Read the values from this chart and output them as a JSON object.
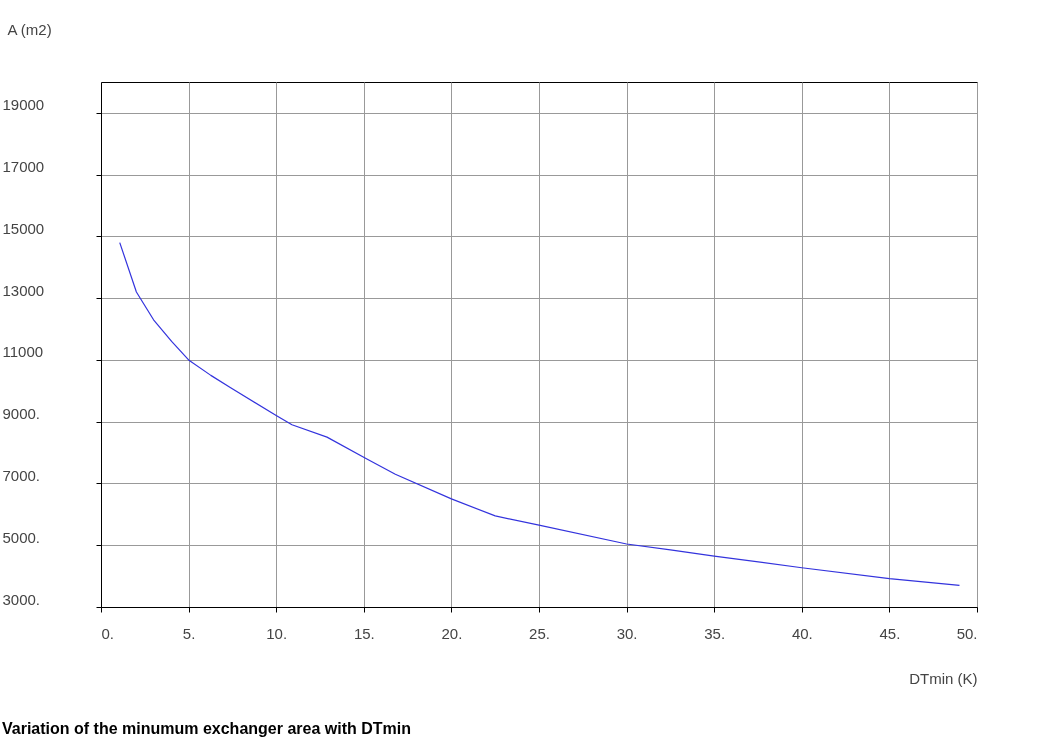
{
  "chart_data": {
    "type": "line",
    "title": "Variation of the minumum exchanger area with DTmin",
    "xlabel": "DTmin (K)",
    "ylabel": "A (m2)",
    "x": [
      1.07,
      2.02,
      3.0,
      4.03,
      5.0,
      6.27,
      7.4,
      10.0,
      10.9,
      12.9,
      15.15,
      16.8,
      20.0,
      22.5,
      25.0,
      30.0,
      32.5,
      35.0,
      40.0,
      45.0,
      49.0
    ],
    "series": [
      {
        "color": "#3333dd",
        "values": [
          14800,
          13200,
          12300,
          11600,
          11000,
          10500,
          10100,
          9200,
          8900,
          8500,
          7800,
          7300,
          6500,
          5950,
          5650,
          5040,
          4850,
          4650,
          4270,
          3920,
          3700
        ]
      }
    ],
    "xlim": [
      0,
      50
    ],
    "ylim": [
      3000,
      20000
    ],
    "xticks": [
      {
        "value": 0,
        "label": "0."
      },
      {
        "value": 5,
        "label": "5."
      },
      {
        "value": 10,
        "label": "10."
      },
      {
        "value": 15,
        "label": "15."
      },
      {
        "value": 20,
        "label": "20."
      },
      {
        "value": 25,
        "label": "25."
      },
      {
        "value": 30,
        "label": "30."
      },
      {
        "value": 35,
        "label": "35."
      },
      {
        "value": 40,
        "label": "40."
      },
      {
        "value": 45,
        "label": "45."
      },
      {
        "value": 50,
        "label": "50."
      }
    ],
    "yticks": [
      {
        "value": 3000,
        "label": "3000."
      },
      {
        "value": 5000,
        "label": "5000."
      },
      {
        "value": 7000,
        "label": "7000."
      },
      {
        "value": 9000,
        "label": "9000."
      },
      11000,
      13000,
      15000,
      17000,
      19000
    ],
    "grid": true,
    "marker": "none",
    "line_style": "solid"
  }
}
